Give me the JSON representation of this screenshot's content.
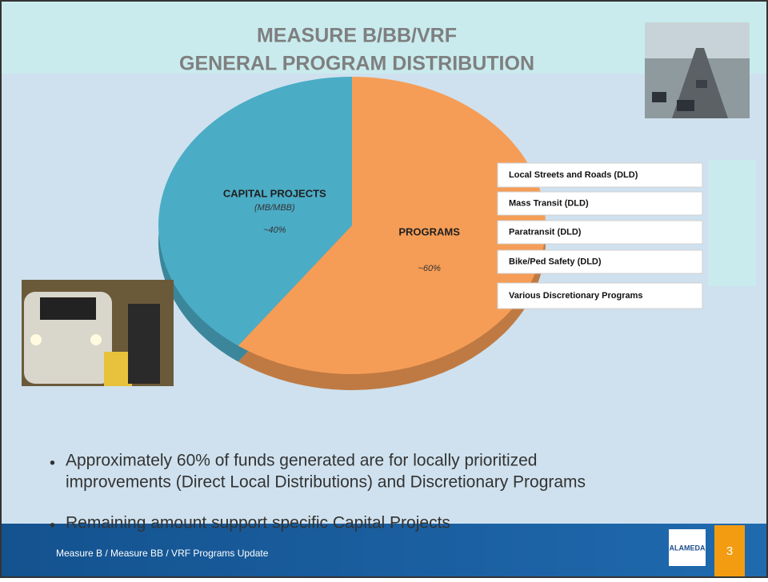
{
  "chart_data": {
    "type": "pie",
    "title_lines": [
      "MEASURE B/BB/VRF",
      "GENERAL PROGRAM DISTRIBUTION"
    ],
    "categories": [
      "CAPITAL PROJECTS",
      "PROGRAMS"
    ],
    "category_notes": [
      "(MB/MBB)",
      null
    ],
    "values": [
      40,
      60
    ],
    "value_labels": [
      "~40%",
      "~60%"
    ],
    "colors": [
      "#4bacc6",
      "#f59d56"
    ]
  },
  "programs_list": [
    "Local Streets and Roads (DLD)",
    "Mass Transit (DLD)",
    "Paratransit (DLD)",
    "Bike/Ped Safety (DLD)",
    "Various Discretionary Programs"
  ],
  "bullets": [
    [
      "Approximately 60% of funds generated are for locally prioritized",
      "improvements (Direct Local Distributions) and Discretionary Programs"
    ],
    [
      "Remaining amount support specific Capital Projects"
    ]
  ],
  "footer": {
    "text": "Measure B / Measure BB / VRF Programs Update",
    "logo": "ALAMEDA",
    "page": "3"
  }
}
